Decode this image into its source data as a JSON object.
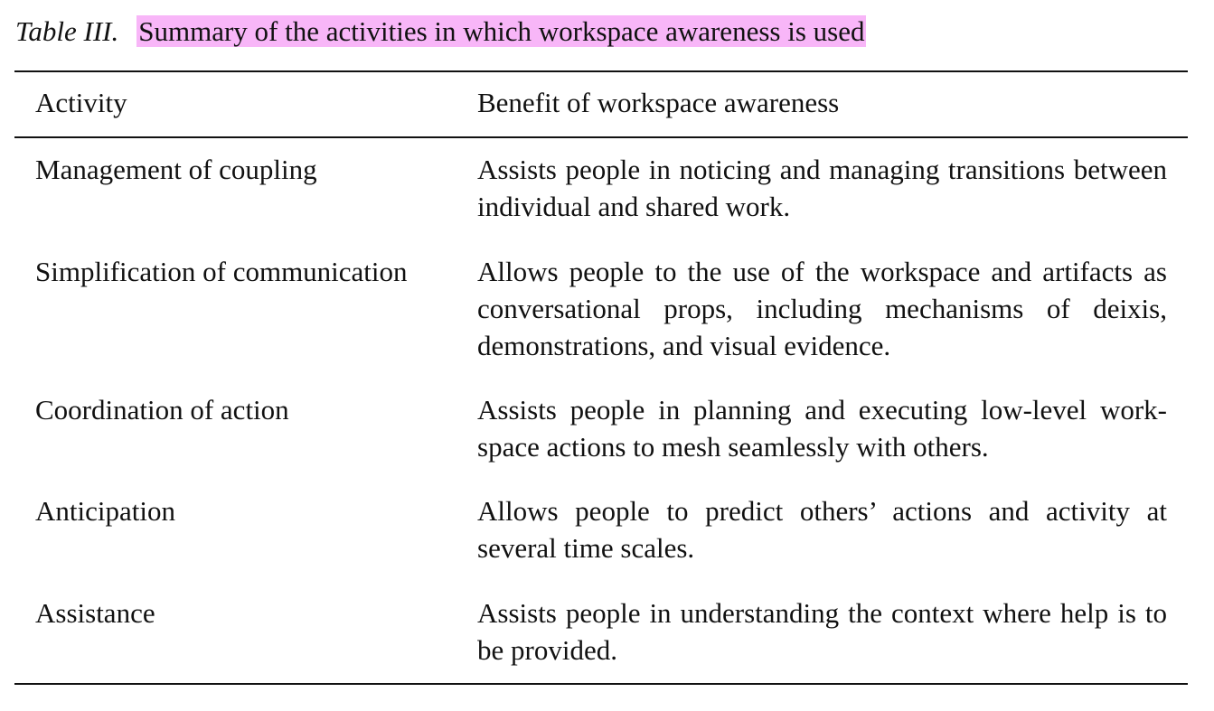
{
  "caption": {
    "label": "Table III.",
    "text": "Summary of the activities in which workspace awareness is used",
    "highlight_color": "#f8b6f8"
  },
  "table": {
    "headers": [
      "Activity",
      "Benefit of workspace awareness"
    ],
    "rows": [
      {
        "activity": "Management of coupling",
        "benefit": "Assists people in noticing and managing transitions between individual and shared work."
      },
      {
        "activity": "Simplification of communication",
        "benefit": "Allows people to the use of the workspace and artifacts as conversational props, including mechanisms of deixis, demonstrations, and visual evidence."
      },
      {
        "activity": "Coordination of action",
        "benefit": "Assists people in planning and executing low-level work-space actions to mesh seamlessly with others."
      },
      {
        "activity": "Anticipation",
        "benefit": "Allows people to predict others’ actions and activity at several time scales."
      },
      {
        "activity": "Assistance",
        "benefit": "Assists people in understanding the context where help is to be provided."
      }
    ]
  }
}
